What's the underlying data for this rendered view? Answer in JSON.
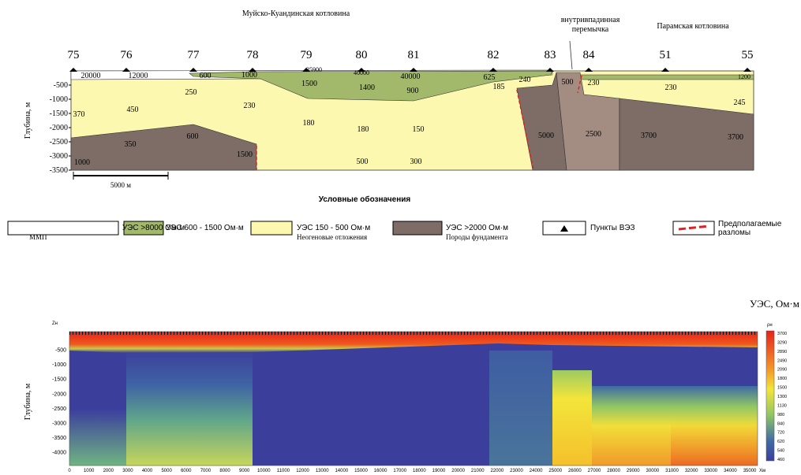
{
  "top": {
    "title": "Муйско-Куандинская котловина",
    "bridge": [
      "внутривпадинная",
      "перемычка"
    ],
    "paramskaya": "Парамская котловина",
    "y_label": "Глубина, м",
    "stations": [
      "75",
      "76",
      "77",
      "78",
      "79",
      "80",
      "81",
      "82",
      "83",
      "84",
      "51",
      "55"
    ],
    "depth_ticks": [
      "-500",
      "-1000",
      "-1500",
      "-2000",
      "-2500",
      "-3000",
      "-3500"
    ],
    "scale": "5000 м",
    "resistivity": [
      "20000",
      "12000",
      "600",
      "1000",
      "35900",
      "40000",
      "40000",
      "625",
      "240",
      "500",
      "230",
      "1200",
      "1500",
      "1400",
      "900",
      "185",
      "230",
      "245",
      "370",
      "450",
      "250",
      "230",
      "180",
      "180",
      "150",
      "350",
      "600",
      "1500",
      "5000",
      "2500",
      "3700",
      "3700",
      "1000",
      "500",
      "300"
    ]
  },
  "legend": {
    "title": "Условные обозначения",
    "items": [
      {
        "label": "УЭС >8000 Ом·м",
        "sub": "ММП"
      },
      {
        "label": "УЭС 600 - 1500 Ом·м"
      },
      {
        "label": "УЭС 150 - 500 Ом·м",
        "sub": "Неогеновые отложения"
      },
      {
        "label": "УЭС >2000 Ом·м",
        "sub": "Породы фундамента"
      },
      {
        "label": "Пункты ВЭЗ"
      },
      {
        "label": "Предполагаемые",
        "sub": "разломы"
      }
    ]
  },
  "bottom": {
    "unit": "УЭС, Ом·м",
    "zn": "Zн",
    "y_label": "Глубина, м",
    "depth_ticks": [
      "-500",
      "-1000",
      "-1500",
      "-2000",
      "-2500",
      "-3000",
      "-3500",
      "-4000"
    ],
    "x_ticks": [
      "0",
      "1000",
      "2000",
      "3000",
      "4000",
      "5000",
      "6000",
      "7000",
      "8000",
      "9000",
      "10000",
      "11000",
      "12000",
      "13000",
      "14000",
      "15000",
      "16000",
      "17000",
      "18000",
      "19000",
      "20000",
      "21000",
      "22000",
      "23000",
      "24000",
      "25000",
      "26000",
      "27000",
      "28000",
      "29000",
      "30000",
      "31000",
      "32000",
      "33000",
      "34000",
      "35000"
    ],
    "x_unit": "Хм",
    "color_unit": "ρн",
    "colorbar": [
      "3700",
      "3290",
      "2890",
      "2490",
      "2090",
      "1800",
      "1500",
      "1300",
      "1130",
      "980",
      "840",
      "720",
      "620",
      "540",
      "460"
    ]
  }
}
